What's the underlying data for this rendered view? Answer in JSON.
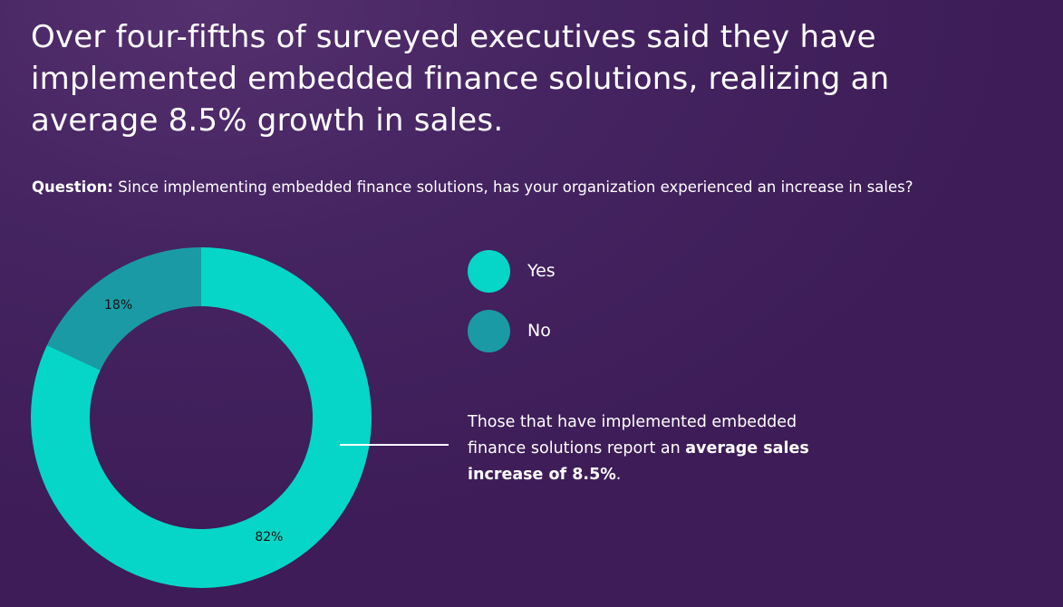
{
  "headline": {
    "lines": [
      "Over four-fifths of surveyed executives said they have",
      "implemented embedded finance solutions, realizing an",
      "average 8.5% growth in sales."
    ]
  },
  "question": {
    "label": "Question:",
    "text": " Since implementing embedded finance solutions, has your organization experienced an increase in sales?"
  },
  "chart_data": {
    "type": "pie",
    "donut": true,
    "title": "",
    "categories": [
      "Yes",
      "No"
    ],
    "values": [
      82,
      18
    ],
    "unit": "%",
    "slice_labels": [
      "82%",
      "18%"
    ],
    "colors": [
      "#06d6c7",
      "#1a9aa5"
    ],
    "legend": "right"
  },
  "legend": {
    "items": [
      {
        "label": "Yes",
        "color": "#06d6c7"
      },
      {
        "label": "No",
        "color": "#1a9aa5"
      }
    ]
  },
  "callout": {
    "text_before": "Those that have implemented embedded finance solutions report an ",
    "text_bold": "average sales increase of 8.5%",
    "text_after": "."
  }
}
